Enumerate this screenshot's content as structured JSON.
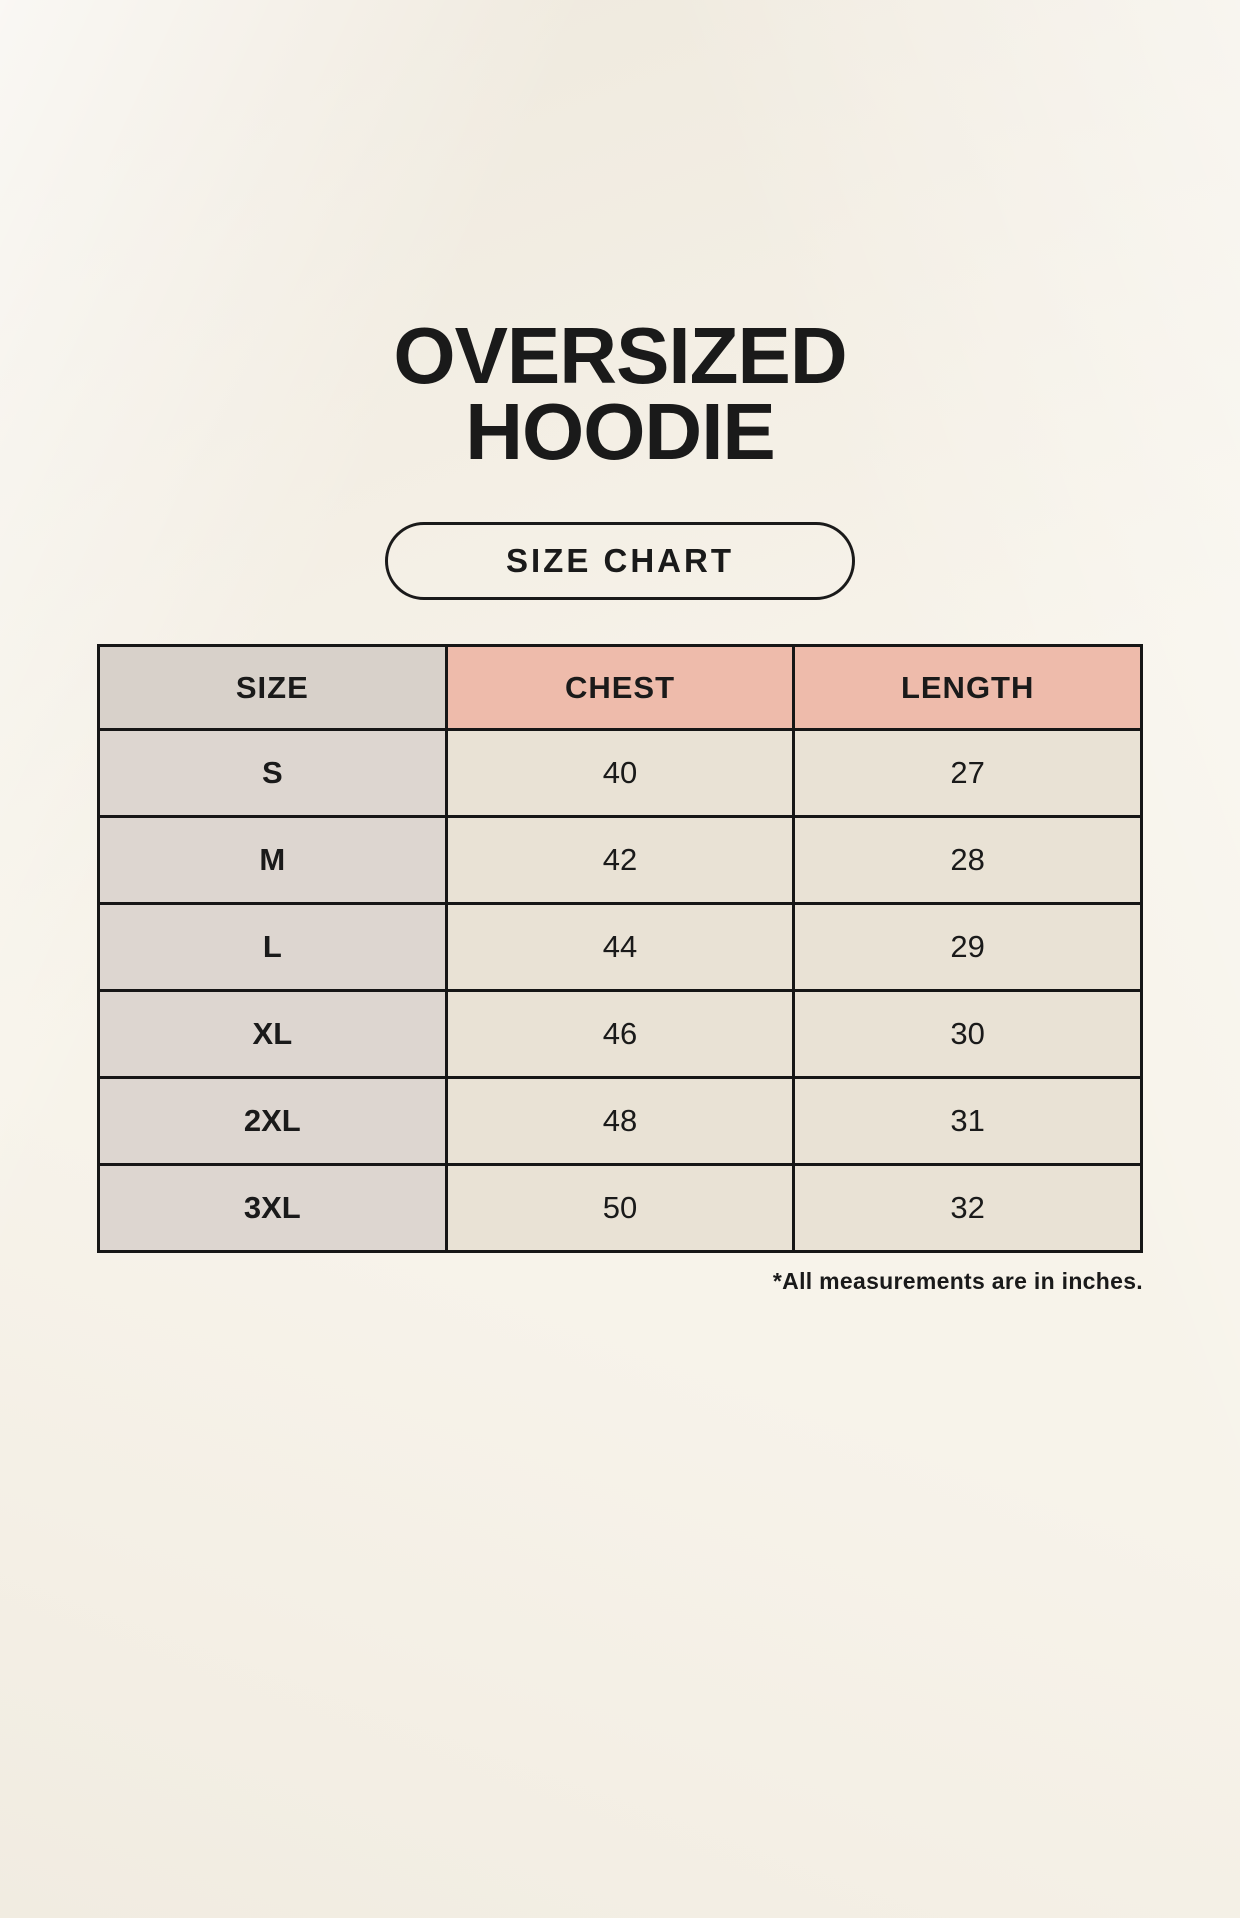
{
  "page": {
    "title_line1": "OVERSIZED",
    "title_line2": "HOODIE",
    "badge_label": "SIZE CHART",
    "footnote": "*All measurements are in inches."
  },
  "table": {
    "columns": [
      "SIZE",
      "CHEST",
      "LENGTH"
    ],
    "rows": [
      {
        "size": "S",
        "chest": "40",
        "length": "27"
      },
      {
        "size": "M",
        "chest": "42",
        "length": "28"
      },
      {
        "size": "L",
        "chest": "44",
        "length": "29"
      },
      {
        "size": "XL",
        "chest": "46",
        "length": "30"
      },
      {
        "size": "2XL",
        "chest": "48",
        "length": "31"
      },
      {
        "size": "3XL",
        "chest": "50",
        "length": "32"
      }
    ]
  },
  "colors": {
    "page_bg": "#f7f3ea",
    "header_size_bg": "#d8d1ca",
    "header_measure_bg": "#eebbab",
    "row_label_bg": "#ddd6d0",
    "cell_bg": "#e9e2d5",
    "border": "#161616",
    "text": "#1a1a1a"
  },
  "chart_data": {
    "type": "table",
    "title": "OVERSIZED HOODIE",
    "subtitle": "SIZE CHART",
    "columns": [
      "SIZE",
      "CHEST",
      "LENGTH"
    ],
    "rows": [
      [
        "S",
        40,
        27
      ],
      [
        "M",
        42,
        28
      ],
      [
        "L",
        44,
        29
      ],
      [
        "XL",
        46,
        30
      ],
      [
        "2XL",
        48,
        31
      ],
      [
        "3XL",
        50,
        32
      ]
    ],
    "units": "inches",
    "note": "*All measurements are in inches.",
    "layout_hints": {
      "header_row_colors": {
        "SIZE": "#d8d1ca",
        "CHEST": "#eebbab",
        "LENGTH": "#eebbab"
      },
      "grid": true,
      "column_count": 3,
      "row_count": 6
    }
  }
}
